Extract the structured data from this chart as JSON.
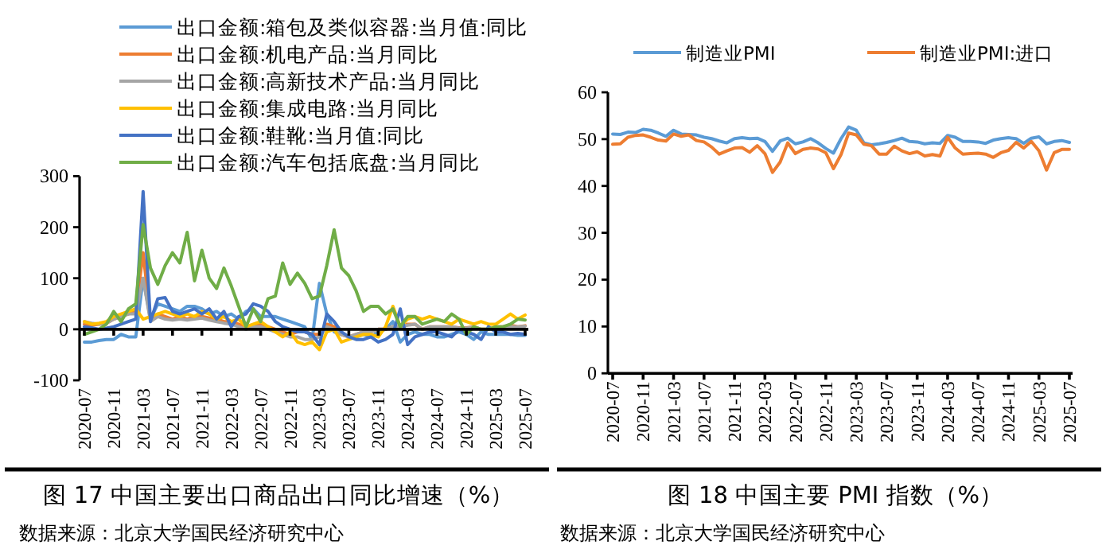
{
  "chart_data": [
    {
      "type": "line",
      "title": "图 17 中国主要出口商品出口同比增速（%）",
      "annotations": [
        "数据来源：北京大学国民经济研究中心"
      ],
      "categories": [
        "2020-07",
        null,
        null,
        null,
        "2020-11",
        null,
        null,
        null,
        "2021-03",
        null,
        null,
        null,
        "2021-07",
        null,
        null,
        null,
        "2021-11",
        null,
        null,
        null,
        "2022-03",
        null,
        null,
        null,
        "2022-07",
        null,
        null,
        null,
        "2022-11",
        null,
        null,
        null,
        "2023-03",
        null,
        null,
        null,
        "2023-07",
        null,
        null,
        null,
        "2023-11",
        null,
        null,
        null,
        "2024-03",
        null,
        null,
        null,
        "2024-07",
        null,
        null,
        null,
        "2024-11",
        null,
        null,
        null,
        "2025-03",
        null,
        null,
        null,
        "2025-07"
      ],
      "ylim": [
        -100,
        300
      ],
      "yticks": [
        -100,
        0,
        100,
        200,
        300
      ],
      "legend": "top",
      "series": [
        {
          "name": "出口金额:箱包及类似容器:当月值:同比",
          "color": "#5b9bd5",
          "values": [
            -25,
            -25,
            -22,
            -20,
            -20,
            -10,
            -15,
            -15,
            100,
            20,
            50,
            45,
            40,
            35,
            45,
            45,
            40,
            30,
            35,
            25,
            30,
            20,
            35,
            40,
            25,
            25,
            25,
            20,
            15,
            10,
            5,
            -20,
            90,
            30,
            -5,
            -10,
            -15,
            -15,
            -10,
            -15,
            -5,
            0,
            15,
            -25,
            -10,
            -5,
            -10,
            -10,
            -15,
            -15,
            -10,
            -5,
            -10,
            -20,
            -5,
            -10,
            -10,
            -10,
            -10,
            -12,
            -12
          ]
        },
        {
          "name": "出口金额:机电产品:当月同比",
          "color": "#ed7d31",
          "values": [
            10,
            8,
            10,
            12,
            20,
            25,
            30,
            35,
            150,
            20,
            30,
            25,
            20,
            25,
            20,
            25,
            25,
            22,
            20,
            15,
            15,
            10,
            5,
            5,
            10,
            5,
            0,
            -5,
            -10,
            -5,
            -5,
            -10,
            -10,
            10,
            5,
            -10,
            -15,
            -10,
            -5,
            -5,
            0,
            0,
            5,
            5,
            10,
            10,
            0,
            5,
            5,
            5,
            5,
            3,
            3,
            5,
            0,
            0,
            5,
            5,
            8,
            5,
            7
          ]
        },
        {
          "name": "出口金额:高新技术产品:当月同比",
          "color": "#a5a5a5",
          "values": [
            15,
            12,
            10,
            12,
            20,
            25,
            30,
            30,
            100,
            15,
            25,
            20,
            18,
            20,
            18,
            20,
            22,
            18,
            15,
            12,
            10,
            5,
            0,
            5,
            5,
            0,
            -5,
            -10,
            -15,
            -15,
            -20,
            -20,
            -15,
            5,
            0,
            -10,
            -15,
            -10,
            -5,
            -5,
            0,
            0,
            5,
            5,
            8,
            10,
            0,
            5,
            5,
            5,
            5,
            2,
            2,
            5,
            0,
            0,
            3,
            3,
            5,
            5,
            6
          ]
        },
        {
          "name": "出口金额:集成电路:当月同比",
          "color": "#ffc000",
          "values": [
            15,
            10,
            12,
            15,
            25,
            30,
            35,
            40,
            20,
            25,
            30,
            35,
            30,
            25,
            30,
            25,
            35,
            30,
            20,
            25,
            15,
            20,
            5,
            10,
            15,
            5,
            -5,
            -15,
            -5,
            -25,
            -30,
            -25,
            -40,
            -5,
            0,
            -25,
            -20,
            -15,
            -10,
            -10,
            -15,
            5,
            45,
            5,
            20,
            25,
            20,
            25,
            20,
            15,
            10,
            20,
            15,
            10,
            15,
            10,
            10,
            20,
            30,
            20,
            28
          ]
        },
        {
          "name": "出口金额:鞋靴:当月值:同比",
          "color": "#4472c4",
          "values": [
            5,
            3,
            0,
            2,
            5,
            10,
            15,
            20,
            270,
            15,
            60,
            62,
            35,
            30,
            35,
            40,
            30,
            40,
            20,
            35,
            5,
            25,
            30,
            50,
            45,
            35,
            15,
            5,
            0,
            -5,
            -5,
            -10,
            -30,
            30,
            15,
            -5,
            -15,
            -20,
            -20,
            -15,
            -25,
            -20,
            -10,
            40,
            -30,
            -15,
            -10,
            -5,
            -5,
            -10,
            -15,
            0,
            -5,
            -10,
            -20,
            5,
            -5,
            -5,
            -10,
            -8,
            -10
          ]
        },
        {
          "name": "出口金额:汽车包括底盘:当月同比",
          "color": "#70ad47",
          "values": [
            -10,
            -5,
            0,
            10,
            35,
            15,
            40,
            50,
            205,
            120,
            88,
            125,
            150,
            130,
            190,
            95,
            155,
            100,
            80,
            120,
            85,
            45,
            5,
            40,
            15,
            60,
            65,
            130,
            88,
            110,
            90,
            60,
            65,
            125,
            195,
            120,
            105,
            75,
            35,
            45,
            45,
            30,
            40,
            5,
            25,
            25,
            10,
            15,
            20,
            15,
            30,
            20,
            -10,
            5,
            0,
            0,
            5,
            5,
            10,
            20,
            18
          ]
        }
      ]
    },
    {
      "type": "line",
      "title": "图 18 中国主要 PMI 指数（%）",
      "annotations": [
        "数据来源：北京大学国民经济研究中心"
      ],
      "categories": [
        "2020-07",
        null,
        null,
        null,
        "2020-11",
        null,
        null,
        null,
        "2021-03",
        null,
        null,
        null,
        "2021-07",
        null,
        null,
        null,
        "2021-11",
        null,
        null,
        null,
        "2022-03",
        null,
        null,
        null,
        "2022-07",
        null,
        null,
        null,
        "2022-11",
        null,
        null,
        null,
        "2023-03",
        null,
        null,
        null,
        "2023-07",
        null,
        null,
        null,
        "2023-11",
        null,
        null,
        null,
        "2024-03",
        null,
        null,
        null,
        "2024-07",
        null,
        null,
        null,
        "2024-11",
        null,
        null,
        null,
        "2025-03",
        null,
        null,
        null,
        "2025-07"
      ],
      "ylim": [
        0,
        60
      ],
      "yticks": [
        0,
        10,
        20,
        30,
        40,
        50,
        60
      ],
      "legend": "top",
      "series": [
        {
          "name": "制造业PMI",
          "color": "#5b9bd5",
          "values": [
            51.1,
            51.0,
            51.5,
            51.4,
            52.1,
            51.9,
            51.3,
            50.6,
            51.9,
            51.1,
            51.0,
            50.9,
            50.4,
            50.1,
            49.6,
            49.2,
            50.1,
            50.3,
            50.1,
            50.2,
            49.5,
            47.4,
            49.6,
            50.2,
            49.0,
            49.4,
            50.1,
            49.2,
            48.0,
            47.0,
            50.1,
            52.6,
            51.9,
            49.2,
            48.8,
            49.0,
            49.3,
            49.7,
            50.2,
            49.5,
            49.4,
            49.0,
            49.2,
            49.1,
            50.8,
            50.4,
            49.5,
            49.5,
            49.4,
            49.1,
            49.8,
            50.1,
            50.3,
            50.1,
            49.1,
            50.2,
            50.5,
            49.0,
            49.5,
            49.7,
            49.3
          ]
        },
        {
          "name": "制造业PMI:进口",
          "color": "#ed7d31",
          "values": [
            48.9,
            49.0,
            50.4,
            50.8,
            50.9,
            50.4,
            49.8,
            49.6,
            51.1,
            50.6,
            50.9,
            49.7,
            49.4,
            48.3,
            46.8,
            47.5,
            48.1,
            48.2,
            47.2,
            48.6,
            46.9,
            42.9,
            45.1,
            49.2,
            46.9,
            47.8,
            48.1,
            47.9,
            47.1,
            43.7,
            46.7,
            51.3,
            50.9,
            48.9,
            48.6,
            46.8,
            46.8,
            48.5,
            47.5,
            46.9,
            47.3,
            46.4,
            46.7,
            46.4,
            50.4,
            48.1,
            46.8,
            46.9,
            47.0,
            46.8,
            46.1,
            47.1,
            47.6,
            49.3,
            48.1,
            49.5,
            47.5,
            43.4,
            47.1,
            47.8,
            47.8
          ]
        }
      ]
    }
  ]
}
